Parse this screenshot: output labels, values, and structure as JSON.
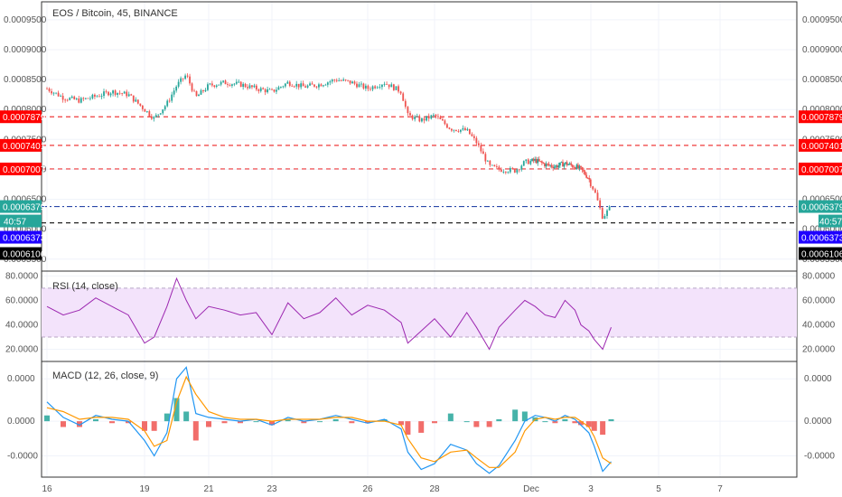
{
  "header": {
    "title": "EOS / Bitcoin, 45, BINANCE"
  },
  "colors": {
    "up": "#26a69a",
    "down": "#ef5350",
    "rsi_line": "#9c27b0",
    "rsi_band": "#f3e3fb",
    "macd_line": "#2196f3",
    "signal_line": "#ff9800",
    "current_tag": "#26a69a",
    "blue_tag": "#1e00ff",
    "black_tag": "#000000",
    "red_tag": "#ff0000"
  },
  "chart_data": [
    {
      "type": "line",
      "subtype": "candlestick",
      "title": "EOS / Bitcoin, 45, BINANCE",
      "x_tick_labels": [
        "16",
        "19",
        "21",
        "23",
        "26",
        "28",
        "Dec",
        "3",
        "5",
        "7"
      ],
      "y_tick_labels": [
        "0.0009500",
        "0.0009000",
        "0.0008500",
        "0.0008000",
        "0.0007500",
        "0.0007000",
        "0.0006500",
        "0.0006000",
        "0.0005500"
      ],
      "ylim": [
        0.00053,
        0.00098
      ],
      "price_close_path": [
        [
          16.0,
          0.000835
        ],
        [
          16.5,
          0.00082
        ],
        [
          17.0,
          0.000815
        ],
        [
          17.5,
          0.000822
        ],
        [
          18.0,
          0.00083
        ],
        [
          18.5,
          0.000825
        ],
        [
          19.0,
          0.0008
        ],
        [
          19.3,
          0.000785
        ],
        [
          19.7,
          0.00081
        ],
        [
          20.0,
          0.00084
        ],
        [
          20.3,
          0.000858
        ],
        [
          20.6,
          0.00082
        ],
        [
          21.0,
          0.00084
        ],
        [
          21.5,
          0.000845
        ],
        [
          22.0,
          0.000842
        ],
        [
          22.5,
          0.000835
        ],
        [
          23.0,
          0.00083
        ],
        [
          23.5,
          0.000845
        ],
        [
          24.0,
          0.000838
        ],
        [
          24.5,
          0.000842
        ],
        [
          25.0,
          0.00085
        ],
        [
          25.5,
          0.000845
        ],
        [
          26.0,
          0.000835
        ],
        [
          26.5,
          0.000845
        ],
        [
          27.0,
          0.00083
        ],
        [
          27.2,
          0.00079
        ],
        [
          27.6,
          0.000782
        ],
        [
          28.0,
          0.00079
        ],
        [
          28.5,
          0.000768
        ],
        [
          29.0,
          0.000765
        ],
        [
          29.3,
          0.000745
        ],
        [
          29.7,
          0.000705
        ],
        [
          30.0,
          0.0007
        ],
        [
          30.5,
          0.000698
        ],
        [
          30.8,
          0.000712
        ],
        [
          31.2,
          0.000715
        ],
        [
          31.7,
          0.000708
        ],
        [
          32.2,
          0.000705
        ],
        [
          32.7,
          0.00071
        ],
        [
          33.2,
          0.000705
        ],
        [
          33.5,
          0.0007
        ],
        [
          33.9,
          0.000685
        ],
        [
          34.1,
          0.000665
        ],
        [
          34.35,
          0.00062
        ],
        [
          34.6,
          0.000638
        ]
      ],
      "horizontal_levels": [
        {
          "value": 0.0007879,
          "label": "0.0007879",
          "style": "red-dashed"
        },
        {
          "value": 0.0007401,
          "label": "0.0007401",
          "style": "red-dashed"
        },
        {
          "value": 0.0007007,
          "label": "0.0007007",
          "style": "red-dashed"
        },
        {
          "value": 0.0006379,
          "label": "0.0006379",
          "style": "blue-dashdot"
        },
        {
          "value": 0.0006106,
          "label": "0.0006106",
          "style": "black-dashed"
        }
      ],
      "price_tags": [
        {
          "value": 0.0007879,
          "label": "0.0007879",
          "color": "red"
        },
        {
          "value": 0.0007401,
          "label": "0.0007401",
          "color": "red"
        },
        {
          "value": 0.0007007,
          "label": "0.0007007",
          "color": "red"
        },
        {
          "value": 0.0006379,
          "label": "0.0006379",
          "color": "current"
        },
        {
          "value": 0.0006373,
          "label": "0.0006373",
          "color": "blue"
        },
        {
          "value": 0.0006106,
          "label": "0.0006106",
          "color": "black"
        }
      ],
      "countdown_label": "40:57",
      "legend": "top-left",
      "grid": true
    },
    {
      "type": "line",
      "title": "RSI (14, close)",
      "y_tick_labels": [
        "80.0000",
        "60.0000",
        "40.0000",
        "20.0000"
      ],
      "ylim": [
        10,
        84
      ],
      "band": [
        30,
        70
      ],
      "series": [
        {
          "values": [
            [
              16.0,
              55
            ],
            [
              16.5,
              48
            ],
            [
              17.0,
              52
            ],
            [
              17.5,
              62
            ],
            [
              18.0,
              55
            ],
            [
              18.5,
              48
            ],
            [
              19.0,
              25
            ],
            [
              19.3,
              30
            ],
            [
              19.7,
              55
            ],
            [
              20.0,
              78
            ],
            [
              20.3,
              60
            ],
            [
              20.6,
              45
            ],
            [
              21.0,
              55
            ],
            [
              21.5,
              52
            ],
            [
              22.0,
              48
            ],
            [
              22.5,
              50
            ],
            [
              23.0,
              32
            ],
            [
              23.5,
              58
            ],
            [
              24.0,
              45
            ],
            [
              24.5,
              50
            ],
            [
              25.0,
              62
            ],
            [
              25.5,
              48
            ],
            [
              26.0,
              56
            ],
            [
              26.5,
              52
            ],
            [
              27.0,
              42
            ],
            [
              27.2,
              25
            ],
            [
              27.6,
              35
            ],
            [
              28.0,
              45
            ],
            [
              28.5,
              30
            ],
            [
              29.0,
              50
            ],
            [
              29.3,
              38
            ],
            [
              29.7,
              20
            ],
            [
              30.0,
              38
            ],
            [
              30.5,
              52
            ],
            [
              30.8,
              60
            ],
            [
              31.2,
              55
            ],
            [
              31.7,
              48
            ],
            [
              32.2,
              46
            ],
            [
              32.7,
              60
            ],
            [
              33.2,
              52
            ],
            [
              33.5,
              40
            ],
            [
              33.9,
              35
            ],
            [
              34.1,
              28
            ],
            [
              34.35,
              20
            ],
            [
              34.6,
              38
            ]
          ]
        }
      ]
    },
    {
      "type": "line",
      "title": "MACD (12, 26, close, 9)",
      "y_tick_labels": [
        "0.0000",
        "0.0000",
        "-0.0000"
      ],
      "ylim": [
        -2.9,
        3.1
      ],
      "series": [
        {
          "values": [
            [
              16.0,
              1.0
            ],
            [
              16.5,
              0.2
            ],
            [
              17.0,
              -0.2
            ],
            [
              17.5,
              0.3
            ],
            [
              18.0,
              0.1
            ],
            [
              18.5,
              0.0
            ],
            [
              19.0,
              -1.0
            ],
            [
              19.3,
              -1.8
            ],
            [
              19.7,
              -0.6
            ],
            [
              20.0,
              2.2
            ],
            [
              20.3,
              2.8
            ],
            [
              20.6,
              0.4
            ],
            [
              21.0,
              0.2
            ],
            [
              21.5,
              0.1
            ],
            [
              22.0,
              0.0
            ],
            [
              22.5,
              0.1
            ],
            [
              23.0,
              -0.2
            ],
            [
              23.5,
              0.2
            ],
            [
              24.0,
              0.0
            ],
            [
              24.5,
              0.1
            ],
            [
              25.0,
              0.3
            ],
            [
              25.5,
              0.1
            ],
            [
              26.0,
              -0.1
            ],
            [
              26.5,
              0.1
            ],
            [
              27.0,
              -0.4
            ],
            [
              27.2,
              -1.6
            ],
            [
              27.6,
              -2.5
            ],
            [
              28.0,
              -2.2
            ],
            [
              28.5,
              -1.2
            ],
            [
              29.0,
              -1.5
            ],
            [
              29.3,
              -2.2
            ],
            [
              29.7,
              -2.7
            ],
            [
              30.0,
              -2.3
            ],
            [
              30.5,
              -1.0
            ],
            [
              30.8,
              0.0
            ],
            [
              31.2,
              0.3
            ],
            [
              31.7,
              0.2
            ],
            [
              32.2,
              0.0
            ],
            [
              32.7,
              0.3
            ],
            [
              33.2,
              0.1
            ],
            [
              33.5,
              -0.2
            ],
            [
              33.9,
              -0.6
            ],
            [
              34.1,
              -1.3
            ],
            [
              34.35,
              -2.6
            ],
            [
              34.6,
              -2.1
            ]
          ]
        },
        {
          "values": [
            [
              16.0,
              0.7
            ],
            [
              16.5,
              0.5
            ],
            [
              17.0,
              0.1
            ],
            [
              17.5,
              0.2
            ],
            [
              18.0,
              0.2
            ],
            [
              18.5,
              0.1
            ],
            [
              19.0,
              -0.5
            ],
            [
              19.3,
              -1.3
            ],
            [
              19.7,
              -1.0
            ],
            [
              20.0,
              1.0
            ],
            [
              20.3,
              2.3
            ],
            [
              20.6,
              1.4
            ],
            [
              21.0,
              0.5
            ],
            [
              21.5,
              0.2
            ],
            [
              22.0,
              0.1
            ],
            [
              22.5,
              0.1
            ],
            [
              23.0,
              0.0
            ],
            [
              23.5,
              0.1
            ],
            [
              24.0,
              0.1
            ],
            [
              24.5,
              0.1
            ],
            [
              25.0,
              0.2
            ],
            [
              25.5,
              0.2
            ],
            [
              26.0,
              0.0
            ],
            [
              26.5,
              0.0
            ],
            [
              27.0,
              -0.2
            ],
            [
              27.2,
              -0.9
            ],
            [
              27.6,
              -1.9
            ],
            [
              28.0,
              -2.1
            ],
            [
              28.5,
              -1.6
            ],
            [
              29.0,
              -1.5
            ],
            [
              29.3,
              -1.9
            ],
            [
              29.7,
              -2.4
            ],
            [
              30.0,
              -2.4
            ],
            [
              30.5,
              -1.6
            ],
            [
              30.8,
              -0.5
            ],
            [
              31.2,
              0.1
            ],
            [
              31.7,
              0.2
            ],
            [
              32.2,
              0.1
            ],
            [
              32.7,
              0.2
            ],
            [
              33.2,
              0.2
            ],
            [
              33.5,
              0.0
            ],
            [
              33.9,
              -0.3
            ],
            [
              34.1,
              -0.8
            ],
            [
              34.35,
              -1.9
            ],
            [
              34.6,
              -2.2
            ]
          ]
        }
      ],
      "histogram": [
        [
          16.0,
          0.3
        ],
        [
          16.5,
          -0.3
        ],
        [
          17.0,
          -0.3
        ],
        [
          17.5,
          0.1
        ],
        [
          18.0,
          -0.1
        ],
        [
          18.5,
          -0.1
        ],
        [
          19.0,
          -0.5
        ],
        [
          19.3,
          -0.5
        ],
        [
          19.7,
          0.4
        ],
        [
          20.0,
          1.2
        ],
        [
          20.3,
          0.5
        ],
        [
          20.6,
          -1.0
        ],
        [
          21.0,
          -0.3
        ],
        [
          21.5,
          -0.1
        ],
        [
          22.0,
          -0.1
        ],
        [
          22.5,
          0.0
        ],
        [
          23.0,
          -0.2
        ],
        [
          23.5,
          0.1
        ],
        [
          24.0,
          -0.1
        ],
        [
          24.5,
          0.0
        ],
        [
          25.0,
          0.1
        ],
        [
          25.5,
          -0.1
        ],
        [
          26.0,
          -0.1
        ],
        [
          26.5,
          0.1
        ],
        [
          27.0,
          -0.2
        ],
        [
          27.2,
          -0.7
        ],
        [
          27.6,
          -0.6
        ],
        [
          28.0,
          -0.1
        ],
        [
          28.5,
          0.4
        ],
        [
          29.0,
          0.0
        ],
        [
          29.3,
          -0.3
        ],
        [
          29.7,
          -0.3
        ],
        [
          30.0,
          0.1
        ],
        [
          30.5,
          0.6
        ],
        [
          30.8,
          0.5
        ],
        [
          31.2,
          0.2
        ],
        [
          31.7,
          0.0
        ],
        [
          32.2,
          -0.1
        ],
        [
          32.7,
          0.1
        ],
        [
          33.2,
          -0.1
        ],
        [
          33.5,
          -0.2
        ],
        [
          33.9,
          -0.3
        ],
        [
          34.1,
          -0.5
        ],
        [
          34.35,
          -0.7
        ],
        [
          34.6,
          0.1
        ]
      ]
    }
  ]
}
